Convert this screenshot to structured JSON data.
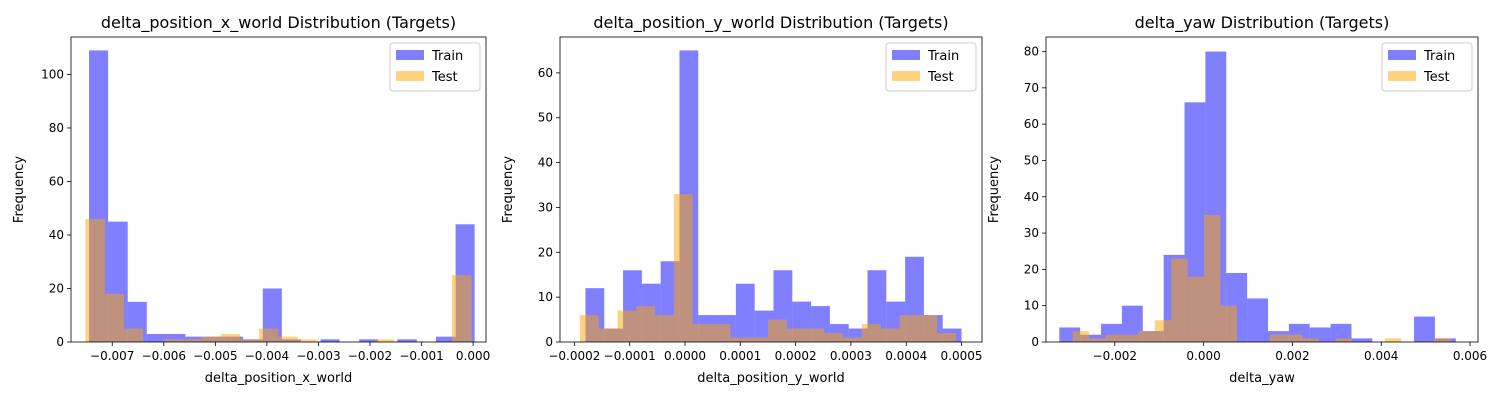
{
  "chart_data": [
    {
      "type": "bar",
      "title": "delta_position_x_world Distribution (Targets)",
      "xlabel": "delta_position_x_world",
      "ylabel": "Frequency",
      "xlim": [
        -0.0078,
        0.00025
      ],
      "ylim": [
        0,
        114
      ],
      "xticks": [
        -0.007,
        -0.006,
        -0.005,
        -0.004,
        -0.003,
        -0.002,
        -0.001,
        0.0
      ],
      "xtick_labels": [
        "−0.007",
        "−0.006",
        "−0.005",
        "−0.004",
        "−0.003",
        "−0.002",
        "−0.001",
        "0.000"
      ],
      "yticks": [
        0,
        20,
        40,
        60,
        80,
        100
      ],
      "ytick_labels": [
        "0",
        "20",
        "40",
        "60",
        "80",
        "100"
      ],
      "legend": "top-right",
      "grid": false,
      "series": [
        {
          "name": "Train",
          "color": "#0000ff",
          "alpha": 0.5,
          "bins": [
            [
              -0.00745,
              -0.00708,
              109
            ],
            [
              -0.00708,
              -0.0067,
              45
            ],
            [
              -0.0067,
              -0.00633,
              15
            ],
            [
              -0.00633,
              -0.00595,
              3
            ],
            [
              -0.00595,
              -0.00558,
              3
            ],
            [
              -0.00558,
              -0.00521,
              2
            ],
            [
              -0.00521,
              -0.00483,
              2
            ],
            [
              -0.00483,
              -0.00446,
              2
            ],
            [
              -0.00446,
              -0.00408,
              1
            ],
            [
              -0.00408,
              -0.00371,
              20
            ],
            [
              -0.00371,
              -0.00334,
              1
            ],
            [
              -0.00334,
              -0.00296,
              0
            ],
            [
              -0.00296,
              -0.00259,
              1
            ],
            [
              -0.00259,
              -0.00221,
              0
            ],
            [
              -0.00221,
              -0.00184,
              1
            ],
            [
              -0.00184,
              -0.00147,
              0
            ],
            [
              -0.00147,
              -0.00109,
              1
            ],
            [
              -0.00109,
              -0.00072,
              0
            ],
            [
              -0.00072,
              -0.00034,
              2
            ],
            [
              -0.00034,
              3e-05,
              44
            ]
          ]
        },
        {
          "name": "Test",
          "color": "#ffa500",
          "alpha": 0.5,
          "bins": [
            [
              -0.00752,
              -0.00714,
              46
            ],
            [
              -0.00714,
              -0.00677,
              18
            ],
            [
              -0.00677,
              -0.0064,
              5
            ],
            [
              -0.0064,
              -0.00602,
              0
            ],
            [
              -0.00602,
              -0.00565,
              1
            ],
            [
              -0.00565,
              -0.00527,
              1
            ],
            [
              -0.00527,
              -0.0049,
              2
            ],
            [
              -0.0049,
              -0.00452,
              3
            ],
            [
              -0.00452,
              -0.00415,
              1
            ],
            [
              -0.00415,
              -0.00378,
              5
            ],
            [
              -0.00378,
              -0.0034,
              2
            ],
            [
              -0.0034,
              -0.00303,
              1
            ],
            [
              -0.00303,
              -0.00265,
              0
            ],
            [
              -0.00265,
              -0.00228,
              0
            ],
            [
              -0.00228,
              -0.0019,
              0
            ],
            [
              -0.0019,
              -0.00153,
              1
            ],
            [
              -0.00153,
              -0.00116,
              0
            ],
            [
              -0.00116,
              -0.00078,
              0
            ],
            [
              -0.00078,
              -0.00041,
              0
            ],
            [
              -0.00041,
              -3e-05,
              25
            ]
          ]
        }
      ]
    },
    {
      "type": "bar",
      "title": "delta_position_y_world Distribution (Targets)",
      "xlabel": "delta_position_y_world",
      "ylabel": "Frequency",
      "xlim": [
        -0.000226,
        0.000537
      ],
      "ylim": [
        0,
        68
      ],
      "xticks": [
        -0.0002,
        -0.0001,
        0.0,
        0.0001,
        0.0002,
        0.0003,
        0.0004,
        0.0005
      ],
      "xtick_labels": [
        "−0.0002",
        "−0.0001",
        "0.0000",
        "0.0001",
        "0.0002",
        "0.0003",
        "0.0004",
        "0.0005"
      ],
      "yticks": [
        0,
        10,
        20,
        30,
        40,
        50,
        60
      ],
      "ytick_labels": [
        "0",
        "10",
        "20",
        "30",
        "40",
        "50",
        "60"
      ],
      "legend": "top-right",
      "grid": false,
      "series": [
        {
          "name": "Train",
          "color": "#0000ff",
          "alpha": 0.5,
          "bins": [
            [
              -0.00018,
              -0.000146,
              12
            ],
            [
              -0.000146,
              -0.000112,
              3
            ],
            [
              -0.000112,
              -7.8e-05,
              16
            ],
            [
              -7.8e-05,
              -4.4e-05,
              13
            ],
            [
              -4.4e-05,
              -1e-05,
              18
            ],
            [
              -1e-05,
              2.4e-05,
              65
            ],
            [
              2.4e-05,
              5.8e-05,
              6
            ],
            [
              5.8e-05,
              9.2e-05,
              6
            ],
            [
              9.2e-05,
              0.000126,
              13
            ],
            [
              0.000126,
              0.00016,
              7
            ],
            [
              0.00016,
              0.000194,
              16
            ],
            [
              0.000194,
              0.000228,
              9
            ],
            [
              0.000228,
              0.000262,
              8
            ],
            [
              0.000262,
              0.000296,
              4
            ],
            [
              0.000296,
              0.00033,
              3
            ],
            [
              0.00033,
              0.000364,
              16
            ],
            [
              0.000364,
              0.000398,
              9
            ],
            [
              0.000398,
              0.000432,
              19
            ],
            [
              0.000432,
              0.000466,
              6
            ],
            [
              0.000466,
              0.0005,
              3
            ]
          ]
        },
        {
          "name": "Test",
          "color": "#ffa500",
          "alpha": 0.5,
          "bins": [
            [
              -0.00019,
              -0.000156,
              6
            ],
            [
              -0.000156,
              -0.000122,
              3
            ],
            [
              -0.000122,
              -8.8e-05,
              7
            ],
            [
              -8.8e-05,
              -5.4e-05,
              8
            ],
            [
              -5.4e-05,
              -2e-05,
              6
            ],
            [
              -2e-05,
              1.4e-05,
              33
            ],
            [
              1.4e-05,
              4.8e-05,
              4
            ],
            [
              4.8e-05,
              8.2e-05,
              4
            ],
            [
              8.2e-05,
              0.000116,
              1
            ],
            [
              0.000116,
              0.00015,
              1
            ],
            [
              0.00015,
              0.000184,
              5
            ],
            [
              0.000184,
              0.000218,
              3
            ],
            [
              0.000218,
              0.000252,
              3
            ],
            [
              0.000252,
              0.000286,
              2
            ],
            [
              0.000286,
              0.00032,
              1
            ],
            [
              0.00032,
              0.000354,
              4
            ],
            [
              0.000354,
              0.000388,
              3
            ],
            [
              0.000388,
              0.000422,
              6
            ],
            [
              0.000422,
              0.000456,
              6
            ],
            [
              0.000456,
              0.00049,
              2
            ]
          ]
        }
      ]
    },
    {
      "type": "bar",
      "title": "delta_yaw Distribution (Targets)",
      "xlabel": "delta_yaw",
      "ylabel": "Frequency",
      "xlim": [
        -0.00355,
        0.00618
      ],
      "ylim": [
        0,
        84
      ],
      "xticks": [
        -0.002,
        0.0,
        0.002,
        0.004,
        0.006
      ],
      "xtick_labels": [
        "−0.002",
        "0.000",
        "0.002",
        "0.004",
        "0.006"
      ],
      "yticks": [
        0,
        10,
        20,
        30,
        40,
        50,
        60,
        70,
        80
      ],
      "ytick_labels": [
        "0",
        "10",
        "20",
        "30",
        "40",
        "50",
        "60",
        "70",
        "80"
      ],
      "legend": "top-right",
      "grid": false,
      "series": [
        {
          "name": "Train",
          "color": "#0000ff",
          "alpha": 0.5,
          "bins": [
            [
              -0.00325,
              -0.00278,
              4
            ],
            [
              -0.00278,
              -0.00231,
              2
            ],
            [
              -0.00231,
              -0.00184,
              5
            ],
            [
              -0.00184,
              -0.00137,
              10
            ],
            [
              -0.00137,
              -0.0009,
              3
            ],
            [
              -0.0009,
              -0.00043,
              24
            ],
            [
              -0.00043,
              4e-05,
              66
            ],
            [
              4e-05,
              0.00051,
              80
            ],
            [
              0.00051,
              0.00098,
              19
            ],
            [
              0.00098,
              0.00145,
              12
            ],
            [
              0.00145,
              0.00192,
              3
            ],
            [
              0.00192,
              0.00239,
              5
            ],
            [
              0.00239,
              0.00286,
              4
            ],
            [
              0.00286,
              0.00333,
              5
            ],
            [
              0.00333,
              0.0038,
              1
            ],
            [
              0.0038,
              0.00427,
              0
            ],
            [
              0.00427,
              0.00474,
              0
            ],
            [
              0.00474,
              0.00521,
              7
            ],
            [
              0.00521,
              0.00568,
              1
            ]
          ]
        },
        {
          "name": "Test",
          "color": "#ffa500",
          "alpha": 0.5,
          "bins": [
            [
              -0.00295,
              -0.00258,
              3
            ],
            [
              -0.00258,
              -0.00221,
              1
            ],
            [
              -0.00221,
              -0.00184,
              2
            ],
            [
              -0.00184,
              -0.00147,
              2
            ],
            [
              -0.00147,
              -0.0011,
              3
            ],
            [
              -0.0011,
              -0.00073,
              6
            ],
            [
              -0.00073,
              -0.00036,
              23
            ],
            [
              -0.00036,
              1e-05,
              18
            ],
            [
              1e-05,
              0.00038,
              35
            ],
            [
              0.00038,
              0.00075,
              10
            ],
            [
              0.00075,
              0.00112,
              0
            ],
            [
              0.00112,
              0.00149,
              0
            ],
            [
              0.00149,
              0.00186,
              2
            ],
            [
              0.00186,
              0.00223,
              2
            ],
            [
              0.00223,
              0.0026,
              1
            ],
            [
              0.0026,
              0.00297,
              0
            ],
            [
              0.00297,
              0.00334,
              1
            ],
            [
              0.00334,
              0.00371,
              0
            ],
            [
              0.00371,
              0.00408,
              0
            ],
            [
              0.00408,
              0.00445,
              1
            ],
            [
              0.00445,
              0.00482,
              0
            ],
            [
              0.00482,
              0.00519,
              0
            ],
            [
              0.00519,
              0.00556,
              1
            ]
          ]
        }
      ]
    }
  ]
}
